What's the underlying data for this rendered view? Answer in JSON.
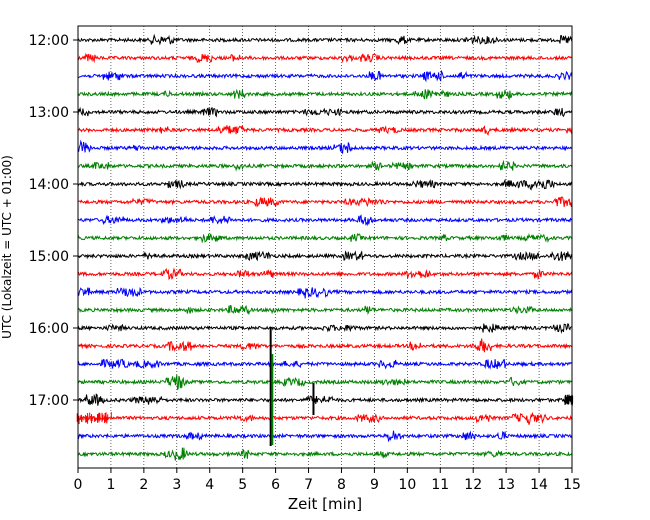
{
  "chart_data": {
    "type": "line",
    "title": "",
    "xlabel": "Zeit  [min]",
    "ylabel": "UTC (Lokalzeit = UTC + 01:00)",
    "xlim": [
      0,
      15
    ],
    "x_ticks": [
      "0",
      "1",
      "2",
      "3",
      "4",
      "5",
      "6",
      "7",
      "8",
      "9",
      "10",
      "11",
      "12",
      "13",
      "14",
      "15"
    ],
    "y_ticks": [
      "12:00",
      "13:00",
      "14:00",
      "15:00",
      "16:00",
      "17:00"
    ],
    "grid": "vertical dotted lines at each minute",
    "legend": "none",
    "trace_colors": [
      "#000000",
      "#ff0000",
      "#0000ff",
      "#008000"
    ],
    "series": [
      {
        "start": "12:00",
        "color": "#000000"
      },
      {
        "start": "12:15",
        "color": "#ff0000"
      },
      {
        "start": "12:30",
        "color": "#0000ff"
      },
      {
        "start": "12:45",
        "color": "#008000"
      },
      {
        "start": "13:00",
        "color": "#000000"
      },
      {
        "start": "13:15",
        "color": "#ff0000"
      },
      {
        "start": "13:30",
        "color": "#0000ff"
      },
      {
        "start": "13:45",
        "color": "#008000"
      },
      {
        "start": "14:00",
        "color": "#000000"
      },
      {
        "start": "14:15",
        "color": "#ff0000"
      },
      {
        "start": "14:30",
        "color": "#0000ff"
      },
      {
        "start": "14:45",
        "color": "#008000"
      },
      {
        "start": "15:00",
        "color": "#000000"
      },
      {
        "start": "15:15",
        "color": "#ff0000"
      },
      {
        "start": "15:30",
        "color": "#0000ff"
      },
      {
        "start": "15:45",
        "color": "#008000"
      },
      {
        "start": "16:00",
        "color": "#000000"
      },
      {
        "start": "16:15",
        "color": "#ff0000"
      },
      {
        "start": "16:30",
        "color": "#0000ff"
      },
      {
        "start": "16:45",
        "color": "#008000"
      },
      {
        "start": "17:00",
        "color": "#000000"
      },
      {
        "start": "17:15",
        "color": "#ff0000"
      },
      {
        "start": "17:30",
        "color": "#0000ff"
      },
      {
        "start": "17:45",
        "color": "#008000"
      }
    ],
    "events": [
      {
        "trace": "16:00",
        "t": 5.85,
        "type": "spike"
      },
      {
        "trace": "16:45",
        "t": 5.9,
        "type": "spike"
      },
      {
        "trace": "17:00",
        "t": 7.15,
        "type": "spike"
      },
      {
        "trace": "17:00",
        "t": 14.9,
        "type": "burst"
      },
      {
        "trace": "17:15",
        "t": 0.5,
        "type": "burst"
      }
    ]
  }
}
